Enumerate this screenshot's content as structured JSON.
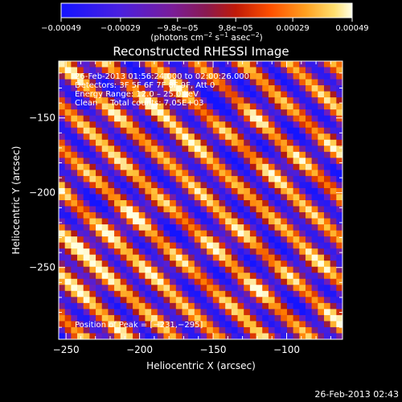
{
  "chart_data": {
    "type": "heatmap",
    "title": "Reconstructed RHESSI Image",
    "xlabel": "Heliocentric X (arcsec)",
    "ylabel": "Heliocentric Y (arcsec)",
    "xlim": [
      -255,
      -62
    ],
    "ylim": [
      -298,
      -112
    ],
    "x_ticks": [
      -250,
      -200,
      -150,
      -100
    ],
    "x_tick_labels": [
      "−250",
      "−200",
      "−150",
      "−100"
    ],
    "y_ticks": [
      -250,
      -200,
      -150
    ],
    "y_tick_labels": [
      "−250",
      "−200",
      "−150"
    ],
    "colorbar": {
      "range": [
        -0.00049,
        0.00049
      ],
      "ticks": [
        -0.00049,
        -0.00029,
        -9.8e-05,
        9.8e-05,
        0.00029,
        0.00049
      ],
      "tick_labels": [
        "−0.00049",
        "−0.00029",
        "−9.8e−05",
        "9.8e−05",
        "0.00029",
        "0.00049"
      ],
      "unit_label_parts": [
        "(photons cm",
        "−2",
        " s",
        "−1",
        " asec",
        "−2",
        ")"
      ]
    },
    "info_lines": [
      "26-Feb-2013 01:56:24.000 to 02:00:26.000",
      "Detectors: 3F 5F 6F 7F 8F 9F, Att 0",
      "Energy Range: 12.0 – 25.0 keV",
      "Clean     Total counts: 7.05E+03"
    ],
    "peak_label": "Position of Peak = [−231,−295]",
    "peak_position": [
      -231,
      -295
    ],
    "footer_timestamp": "26-Feb-2013 02:43",
    "grid": false,
    "colormap": "blue-purple-red-orange-yellow-white (IDL color table 5 style)"
  },
  "colors": {
    "background": "#000000",
    "foreground": "#ffffff",
    "cmap_stops": [
      "#1414ff",
      "#5a1fd0",
      "#7a1d9a",
      "#8a2a6e",
      "#b01a12",
      "#e03a00",
      "#ff7a00",
      "#ffc840",
      "#ffffe0"
    ]
  }
}
